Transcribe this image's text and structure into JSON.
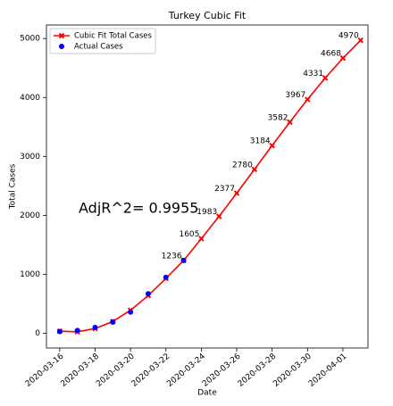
{
  "chart_data": {
    "type": "line",
    "title": "Turkey Cubic Fit",
    "x_label": "Date",
    "y_label": "Total Cases",
    "annotation": "AdjR^2= 0.9955",
    "x": [
      "2020-03-16",
      "2020-03-17",
      "2020-03-18",
      "2020-03-19",
      "2020-03-20",
      "2020-03-21",
      "2020-03-22",
      "2020-03-23",
      "2020-03-24",
      "2020-03-25",
      "2020-03-26",
      "2020-03-27",
      "2020-03-28",
      "2020-03-29",
      "2020-03-30",
      "2020-03-31",
      "2020-04-01",
      "2020-04-02"
    ],
    "series": [
      {
        "name": "Cubic Fit Total Cases",
        "color": "#ff0000",
        "marker": "x",
        "values": [
          35,
          25,
          80,
          200,
          390,
          640,
          930,
          1236,
          1605,
          1983,
          2377,
          2780,
          3184,
          3582,
          3967,
          4331,
          4668,
          4970
        ],
        "value_labels": [
          null,
          null,
          null,
          null,
          null,
          null,
          null,
          "1236",
          "1605",
          "1983",
          "2377",
          "2780",
          "3184",
          "3582",
          "3967",
          "4331",
          "4668",
          "4970"
        ]
      },
      {
        "name": "Actual Cases",
        "color": "#0000ff",
        "marker": "o",
        "values": [
          30,
          47,
          98,
          191,
          359,
          670,
          947,
          1236,
          null,
          null,
          null,
          null,
          null,
          null,
          null,
          null,
          null,
          null
        ]
      }
    ],
    "xlim": [
      "2020-03-15T06:00:00Z",
      "2020-04-02T10:00:00Z"
    ],
    "xticks": [
      "2020-03-16",
      "2020-03-18",
      "2020-03-20",
      "2020-03-22",
      "2020-03-24",
      "2020-03-26",
      "2020-03-28",
      "2020-03-30",
      "2020-04-01"
    ],
    "ylim": [
      -250,
      5230
    ],
    "yticks": [
      0,
      1000,
      2000,
      3000,
      4000,
      5000
    ],
    "grid": false,
    "legend": "upper left"
  }
}
